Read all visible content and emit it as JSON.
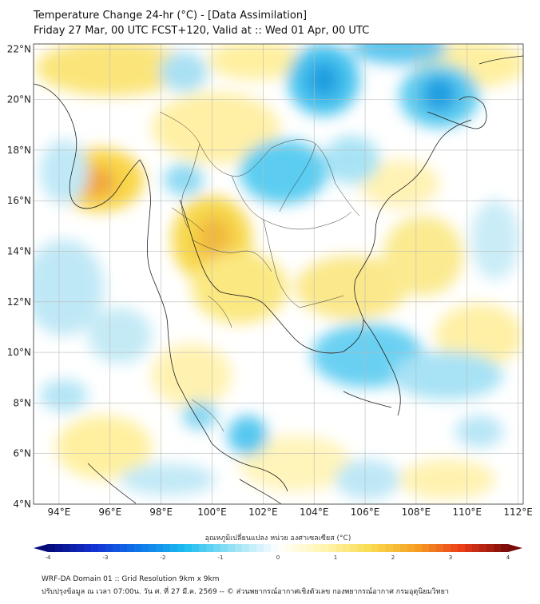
{
  "title": {
    "line1": "Temperature Change 24-hr (°C) - [Data Assimilation]",
    "line2": "Friday 27 Mar, 00 UTC FCST+120, Valid at :: Wed 01 Apr, 00 UTC"
  },
  "axes": {
    "lat_labels": [
      "22°N",
      "20°N",
      "18°N",
      "16°N",
      "14°N",
      "12°N",
      "10°N",
      "8°N",
      "6°N",
      "4°N"
    ],
    "lon_labels": [
      "94°E",
      "96°E",
      "98°E",
      "100°E",
      "102°E",
      "104°E",
      "106°E",
      "108°E",
      "110°E",
      "112°E"
    ],
    "lat_range": [
      4,
      22.2
    ],
    "lon_range": [
      93,
      112.2
    ]
  },
  "colorbar": {
    "label": "อุณหภูมิเปลี่ยนแปลง หน่วย องศาเซลเซียส (°C)",
    "ticks": [
      "-4",
      "-3",
      "-2",
      "-1",
      "0",
      "1",
      "2",
      "3",
      "4"
    ],
    "range": [
      -4,
      4
    ]
  },
  "footer": {
    "line1": "WRF-DA Domain 01 :: Grid Resolution 9km x 9km",
    "line2": "ปรับปรุงข้อมูล ณ เวลา 07:00น. วัน ศ. ที่ 27 มี.ค. 2569 -- © ส่วนพยากรณ์อากาศเชิงตัวเลข กองพยากรณ์อากาศ กรมอุตุนิยมวิทยา"
  },
  "colors": {
    "cold_strong": "#0a84d8",
    "cold": "#35c6ee",
    "cool": "#a9e6f7",
    "neutral": "#ffffff",
    "mild": "#fff4b0",
    "warm": "#f9dd55",
    "hot": "#f2a128"
  }
}
